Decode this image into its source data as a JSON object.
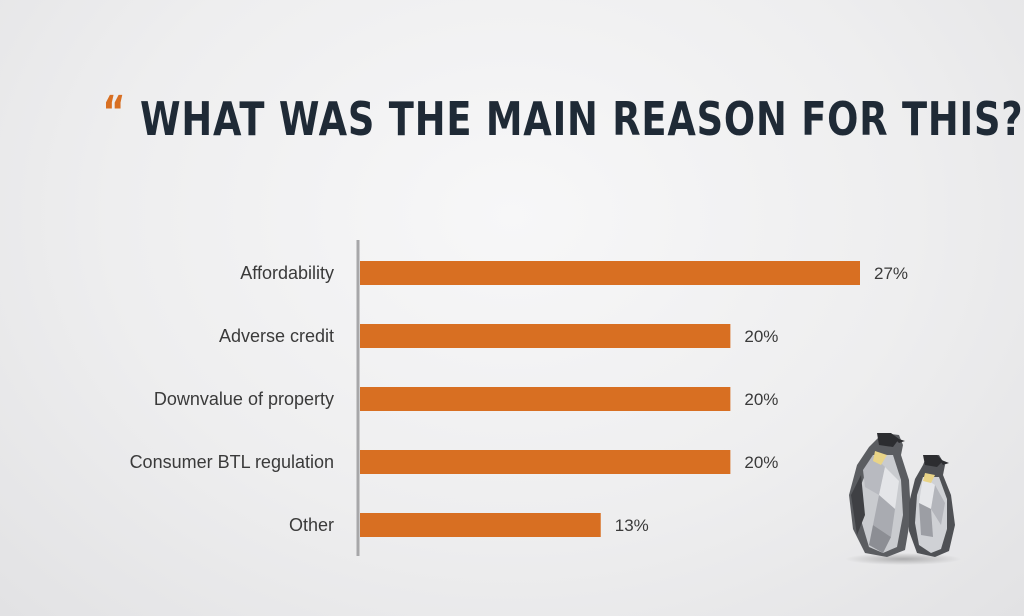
{
  "header": {
    "open_quote": "“",
    "title": "WHAT WAS THE MAIN REASON FOR THIS?",
    "close_quote": "”"
  },
  "colors": {
    "bar": "#d86f22",
    "axis": "#a7a7a9",
    "label": "#3a3a3a",
    "title": "#1f2a36",
    "quote": "#d86f22"
  },
  "chart_data": {
    "type": "bar",
    "orientation": "horizontal",
    "title": "WHAT WAS THE MAIN REASON FOR THIS?",
    "categories": [
      "Affordability",
      "Adverse credit",
      "Downvalue of  property",
      "Consumer BTL regulation",
      "Other"
    ],
    "values": [
      27,
      20,
      20,
      20,
      13
    ],
    "value_labels": [
      "27%",
      "20%",
      "20%",
      "20%",
      "13%"
    ],
    "unit": "%",
    "xlabel": "",
    "ylabel": "",
    "grid": false,
    "legend": "none"
  },
  "decoration": {
    "icon": "penguin-pair-illustration"
  }
}
